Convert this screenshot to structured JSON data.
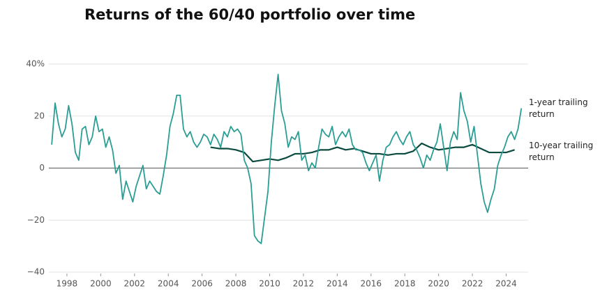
{
  "chart_data": {
    "type": "line",
    "title": "Returns of the 60/40 portfolio over time",
    "xlim": [
      1997,
      2025.3
    ],
    "xticks": [
      1998,
      2000,
      2002,
      2004,
      2006,
      2008,
      2010,
      2012,
      2014,
      2016,
      2018,
      2020,
      2022,
      2024
    ],
    "ylim": [
      -40,
      40
    ],
    "yticks": [
      {
        "value": -40,
        "label": "−40"
      },
      {
        "value": -20,
        "label": "−20"
      },
      0,
      20,
      {
        "value": 40,
        "label": "40%"
      }
    ],
    "grid": true,
    "series": [
      {
        "name": "1-year trailing return",
        "color": "#2a9d95",
        "x": [
          1997.1,
          1997.3,
          1997.5,
          1997.7,
          1997.9,
          1998.1,
          1998.3,
          1998.5,
          1998.7,
          1998.9,
          1999.1,
          1999.3,
          1999.5,
          1999.7,
          1999.9,
          2000.1,
          2000.3,
          2000.5,
          2000.7,
          2000.9,
          2001.1,
          2001.3,
          2001.5,
          2001.7,
          2001.9,
          2002.1,
          2002.3,
          2002.5,
          2002.7,
          2002.9,
          2003.1,
          2003.3,
          2003.5,
          2003.7,
          2003.9,
          2004.1,
          2004.3,
          2004.5,
          2004.7,
          2004.9,
          2005.1,
          2005.3,
          2005.5,
          2005.7,
          2005.9,
          2006.1,
          2006.3,
          2006.5,
          2006.7,
          2006.9,
          2007.1,
          2007.3,
          2007.5,
          2007.7,
          2007.9,
          2008.1,
          2008.3,
          2008.5,
          2008.7,
          2008.9,
          2009.1,
          2009.3,
          2009.5,
          2009.7,
          2009.9,
          2010.1,
          2010.3,
          2010.5,
          2010.7,
          2010.9,
          2011.1,
          2011.3,
          2011.5,
          2011.7,
          2011.9,
          2012.1,
          2012.3,
          2012.5,
          2012.7,
          2012.9,
          2013.1,
          2013.3,
          2013.5,
          2013.7,
          2013.9,
          2014.1,
          2014.3,
          2014.5,
          2014.7,
          2014.9,
          2015.1,
          2015.3,
          2015.5,
          2015.7,
          2015.9,
          2016.1,
          2016.3,
          2016.5,
          2016.7,
          2016.9,
          2017.1,
          2017.3,
          2017.5,
          2017.7,
          2017.9,
          2018.1,
          2018.3,
          2018.5,
          2018.7,
          2018.9,
          2019.1,
          2019.3,
          2019.5,
          2019.7,
          2019.9,
          2020.1,
          2020.3,
          2020.5,
          2020.7,
          2020.9,
          2021.1,
          2021.3,
          2021.5,
          2021.7,
          2021.9,
          2022.1,
          2022.3,
          2022.5,
          2022.7,
          2022.9,
          2023.1,
          2023.3,
          2023.5,
          2023.7,
          2023.9,
          2024.1,
          2024.3,
          2024.5,
          2024.7,
          2024.9
        ],
        "values": [
          9,
          25,
          17,
          12,
          15,
          24,
          17,
          6,
          3,
          15,
          16,
          9,
          12,
          20,
          14,
          15,
          8,
          12,
          7,
          -2,
          1,
          -12,
          -5,
          -9,
          -13,
          -7,
          -3,
          1,
          -8,
          -5,
          -7,
          -9,
          -10,
          -3,
          5,
          16,
          21,
          28,
          28,
          15,
          12,
          14,
          10,
          8,
          10,
          13,
          12,
          9,
          13,
          11,
          8,
          14,
          12,
          16,
          14,
          15,
          13,
          3,
          0,
          -6,
          -26,
          -28,
          -29,
          -19,
          -9,
          10,
          24,
          36,
          22,
          17,
          8,
          12,
          11,
          14,
          3,
          5,
          -1,
          2,
          0,
          8,
          15,
          13,
          12,
          16,
          9,
          12,
          14,
          12,
          15,
          9,
          7,
          7,
          6,
          2,
          -1,
          2,
          5,
          -5,
          3,
          8,
          9,
          12,
          14,
          11,
          9,
          12,
          14,
          9,
          7,
          4,
          0,
          5,
          3,
          7,
          10,
          17,
          8,
          -1,
          10,
          14,
          11,
          29,
          22,
          18,
          10,
          16,
          5,
          -6,
          -13,
          -17,
          -12,
          -8,
          1,
          5,
          8,
          12,
          14,
          11,
          15,
          23
        ]
      },
      {
        "name": "10-year trailing return",
        "color": "#0b4a3e",
        "x": [
          2006.5,
          2007,
          2007.5,
          2008,
          2008.5,
          2009,
          2009.5,
          2010,
          2010.5,
          2011,
          2011.5,
          2012,
          2012.5,
          2013,
          2013.5,
          2014,
          2014.5,
          2015,
          2015.5,
          2016,
          2016.5,
          2017,
          2017.5,
          2018,
          2018.5,
          2019,
          2019.5,
          2020,
          2020.5,
          2021,
          2021.5,
          2022,
          2022.5,
          2023,
          2023.5,
          2024,
          2024.5
        ],
        "values": [
          8,
          7.5,
          7.5,
          7,
          6,
          2.5,
          3,
          3.5,
          3,
          4,
          5.5,
          5.5,
          6,
          7,
          7,
          8,
          7,
          7.5,
          6.5,
          5.5,
          5.5,
          5,
          5.5,
          5.5,
          6.5,
          9.5,
          8,
          7,
          7.5,
          8,
          8,
          9,
          7.5,
          6,
          6,
          6,
          7
        ]
      }
    ]
  }
}
